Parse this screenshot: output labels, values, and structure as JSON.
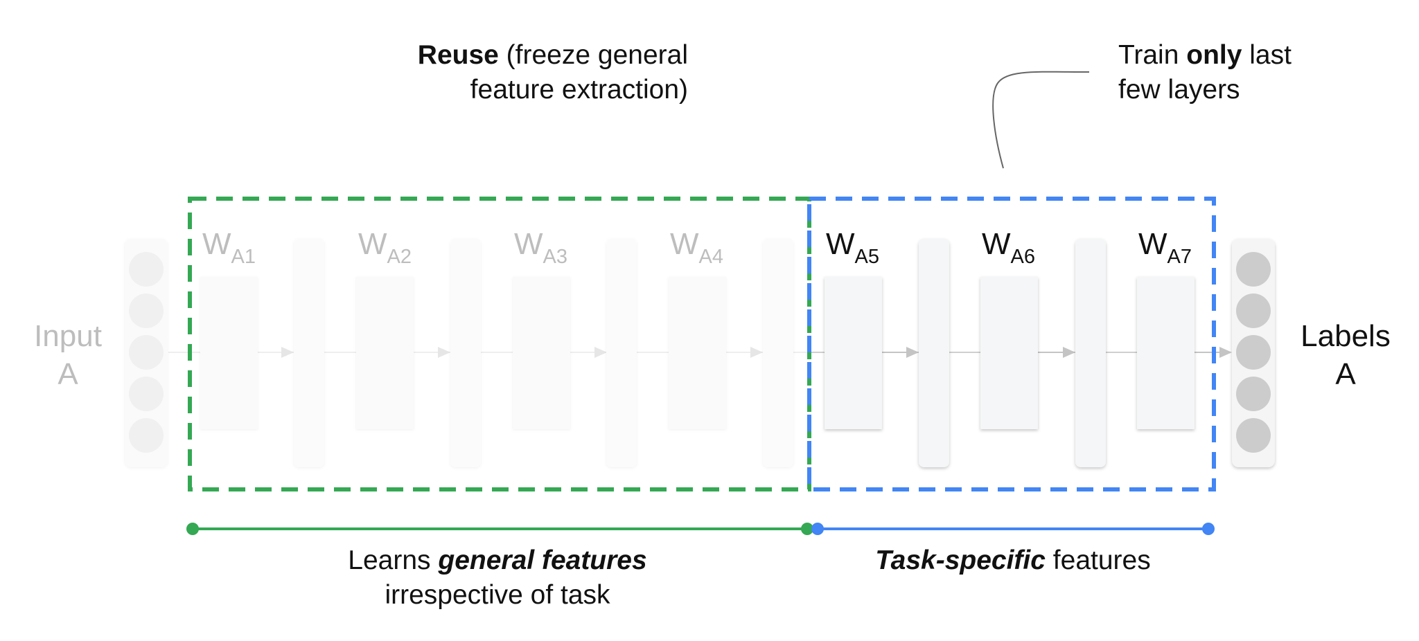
{
  "annotations": {
    "reuse_bold": "Reuse",
    "reuse_rest": " (freeze general",
    "reuse_line2": "feature extraction)",
    "train_prefix": "Train ",
    "train_bold": "only",
    "train_suffix": " last",
    "train_line2": "few layers"
  },
  "network": {
    "input_label_line1": "Input",
    "input_label_line2": "A",
    "output_label_line1": "Labels",
    "output_label_line2": "A",
    "weight_base": "W",
    "weights": [
      {
        "sub": "A1",
        "trainable": false
      },
      {
        "sub": "A2",
        "trainable": false
      },
      {
        "sub": "A3",
        "trainable": false
      },
      {
        "sub": "A4",
        "trainable": false
      },
      {
        "sub": "A5",
        "trainable": true
      },
      {
        "sub": "A6",
        "trainable": true
      },
      {
        "sub": "A7",
        "trainable": true
      }
    ]
  },
  "bottom": {
    "general_prefix": "Learns ",
    "general_bold": "general features",
    "general_line2": "irrespective of task",
    "task_bold": "Task-specific",
    "task_suffix": " features"
  },
  "colors": {
    "green": "#34a853",
    "blue": "#4285f4",
    "faded_text": "#bdbdbd",
    "dark_text": "#111111"
  }
}
